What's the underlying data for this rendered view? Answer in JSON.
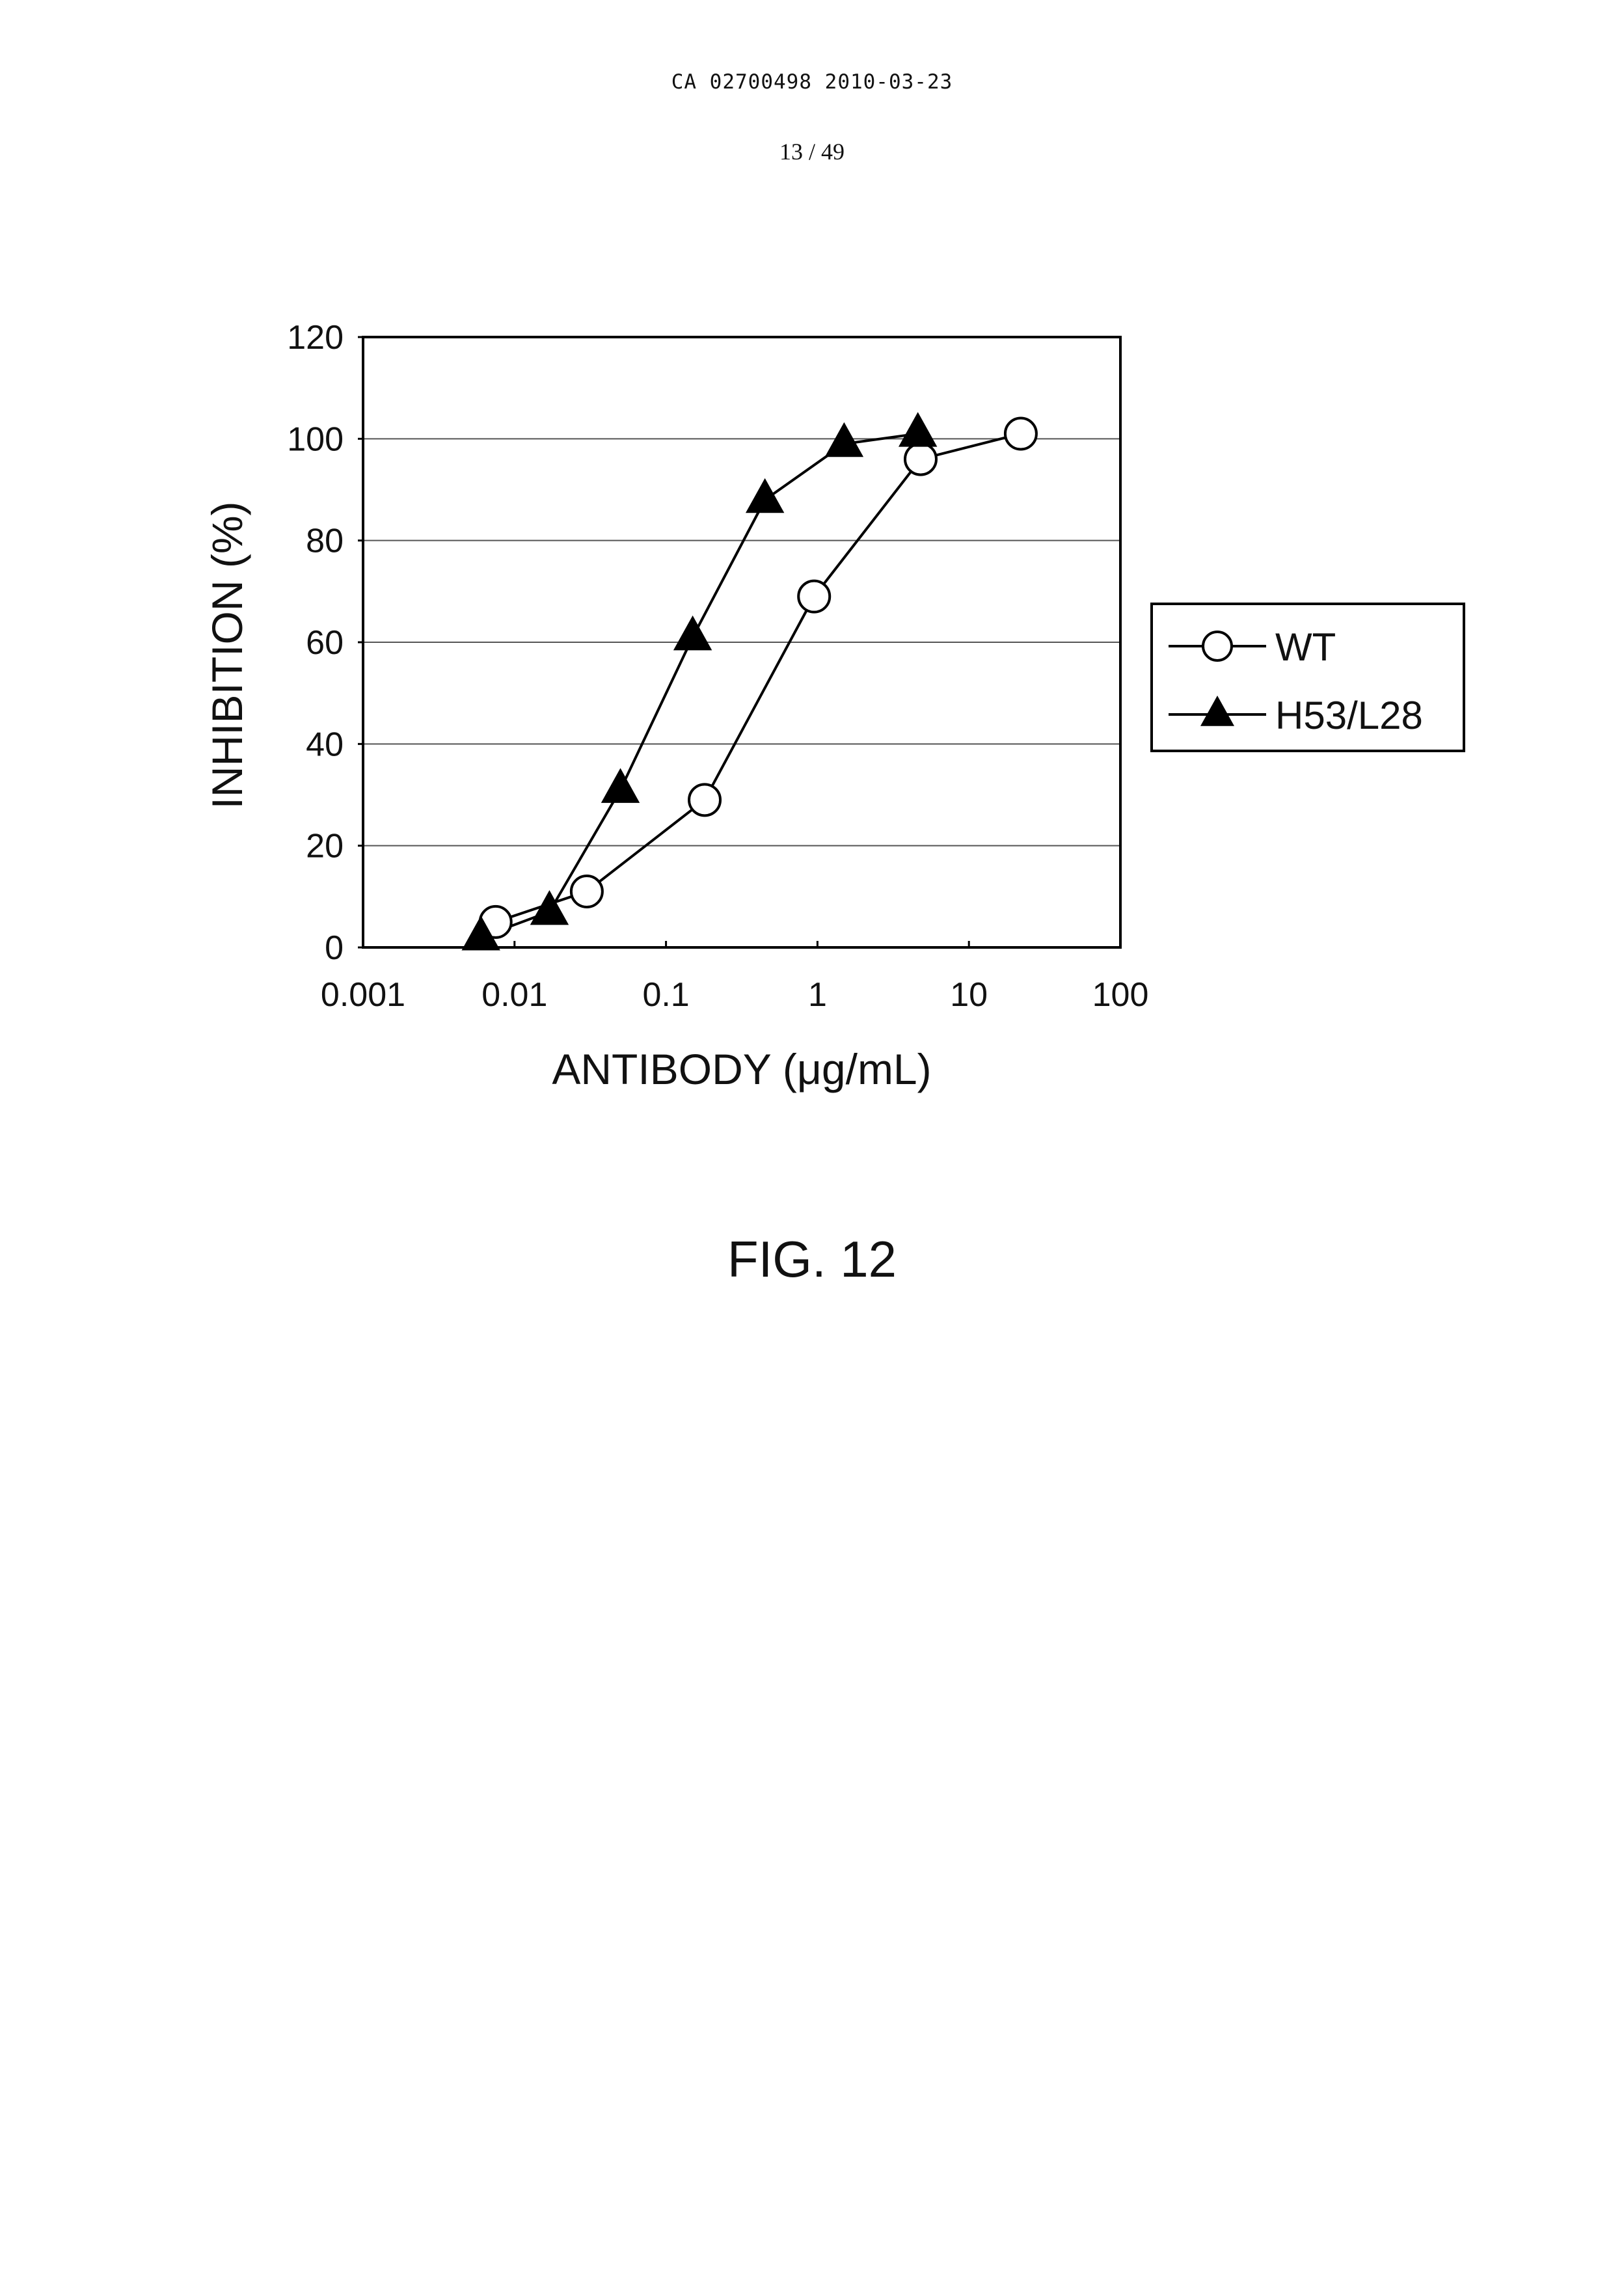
{
  "header": {
    "doc_id": "CA 02700498 2010-03-23",
    "page": "13 / 49"
  },
  "figure_label": "FIG. 12",
  "chart_data": {
    "type": "line",
    "xscale": "log",
    "xlabel": "ANTIBODY (μg/mL)",
    "ylabel": "INHIBITION (%)",
    "xlim": [
      0.001,
      100
    ],
    "ylim": [
      0,
      120
    ],
    "x_ticks": [
      "0.001",
      "0.01",
      "0.1",
      "1",
      "10",
      "100"
    ],
    "y_ticks": [
      "0",
      "20",
      "40",
      "60",
      "80",
      "100",
      "120"
    ],
    "grid": "horizontal",
    "legend_position": "right",
    "series": [
      {
        "name": "WT",
        "marker": "open-circle",
        "x": [
          0.0075,
          0.03,
          0.18,
          0.95,
          4.8,
          22
        ],
        "y": [
          5,
          11,
          29,
          69,
          96,
          101
        ]
      },
      {
        "name": "H53/L28",
        "marker": "filled-triangle",
        "x": [
          0.006,
          0.017,
          0.05,
          0.15,
          0.45,
          1.5,
          4.6
        ],
        "y": [
          2,
          7,
          31,
          61,
          88,
          99,
          101
        ]
      }
    ]
  }
}
